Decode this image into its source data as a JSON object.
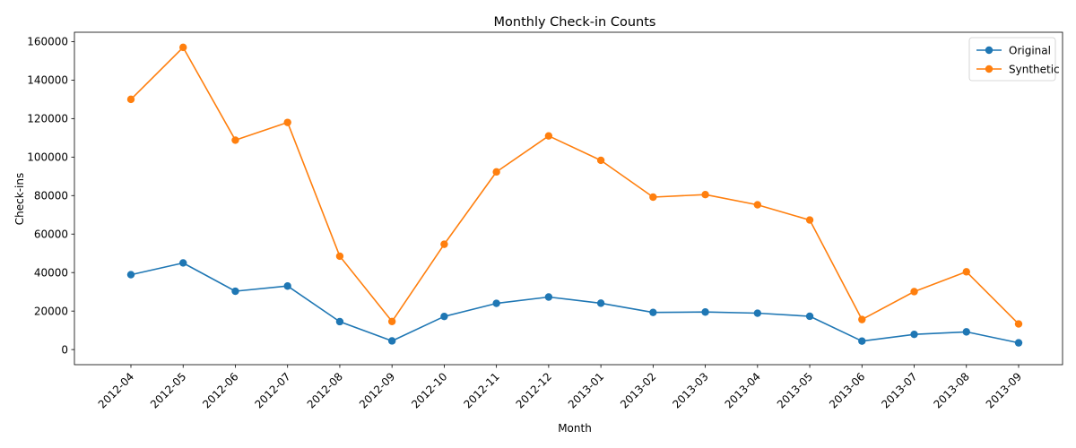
{
  "chart_data": {
    "type": "line",
    "title": "Monthly Check-in Counts",
    "xlabel": "Month",
    "ylabel": "Check-ins",
    "categories": [
      "2012-04",
      "2012-05",
      "2012-06",
      "2012-07",
      "2012-08",
      "2012-09",
      "2012-10",
      "2012-11",
      "2012-12",
      "2013-01",
      "2013-02",
      "2013-03",
      "2013-04",
      "2013-05",
      "2013-06",
      "2013-07",
      "2013-08",
      "2013-09"
    ],
    "series": [
      {
        "name": "Original",
        "color": "#1f77b4",
        "values": [
          38900,
          45000,
          30300,
          33000,
          14500,
          4500,
          17200,
          24000,
          27300,
          24100,
          19300,
          19500,
          18900,
          17300,
          4400,
          7900,
          9200,
          3500
        ]
      },
      {
        "name": "Synthetic",
        "color": "#ff7f0e",
        "values": [
          130000,
          157000,
          108800,
          118000,
          48500,
          14600,
          54700,
          92300,
          111000,
          98300,
          79200,
          80500,
          75200,
          67300,
          15600,
          30100,
          40400,
          13300
        ]
      }
    ],
    "ylim": [
      -7850,
      164850
    ],
    "yticks": [
      0,
      20000,
      40000,
      60000,
      80000,
      100000,
      120000,
      140000,
      160000
    ],
    "grid": false,
    "legend": "top-right"
  }
}
